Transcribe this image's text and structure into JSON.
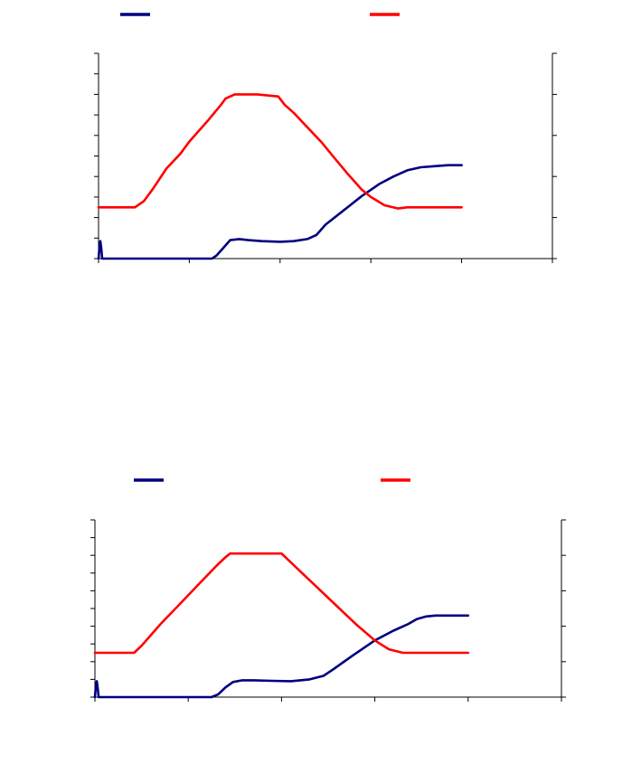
{
  "chart_data": [
    {
      "type": "line",
      "title": "",
      "xlabel": "",
      "ylabel": "",
      "y2label": "",
      "xlim": [
        0,
        5
      ],
      "ylim": [
        0,
        10
      ],
      "y2lim": [
        0,
        5
      ],
      "x_ticks": 5,
      "y_ticks": 10,
      "y2_ticks": 5,
      "grid": false,
      "legend": "top",
      "series": [
        {
          "color": "#000080",
          "axis": "left",
          "x": [
            0,
            0.01,
            0.02,
            0.03,
            0.04,
            1.25,
            1.3,
            1.38,
            1.45,
            1.55,
            1.65,
            1.8,
            2.0,
            2.15,
            2.3,
            2.4,
            2.5,
            2.7,
            2.9,
            3.1,
            3.25,
            3.4,
            3.55,
            3.7,
            3.85,
            4.0
          ],
          "y": [
            0,
            0.55,
            0.85,
            0.5,
            0,
            0,
            0.15,
            0.55,
            0.9,
            0.95,
            0.9,
            0.85,
            0.82,
            0.85,
            0.95,
            1.15,
            1.65,
            2.35,
            3.05,
            3.65,
            4.0,
            4.3,
            4.45,
            4.5,
            4.55,
            4.55
          ]
        },
        {
          "color": "#ff0000",
          "axis": "right",
          "x": [
            0,
            0.4,
            0.5,
            0.6,
            0.75,
            0.9,
            1.0,
            1.2,
            1.35,
            1.4,
            1.5,
            1.75,
            1.98,
            2.05,
            2.15,
            2.3,
            2.45,
            2.6,
            2.75,
            2.9,
            3.0,
            3.15,
            3.3,
            3.4,
            3.6,
            4.0
          ],
          "y": [
            1.25,
            1.25,
            1.4,
            1.7,
            2.2,
            2.55,
            2.85,
            3.35,
            3.75,
            3.9,
            4.0,
            4.0,
            3.95,
            3.75,
            3.55,
            3.2,
            2.85,
            2.45,
            2.05,
            1.68,
            1.5,
            1.3,
            1.22,
            1.25,
            1.25,
            1.25
          ]
        }
      ]
    },
    {
      "type": "line",
      "title": "",
      "xlabel": "",
      "ylabel": "",
      "y2label": "",
      "xlim": [
        0,
        5
      ],
      "ylim": [
        0,
        10
      ],
      "y2lim": [
        0,
        5
      ],
      "x_ticks": 5,
      "y_ticks": 10,
      "y2_ticks": 5,
      "grid": false,
      "legend": "top",
      "series": [
        {
          "color": "#000080",
          "axis": "left",
          "x": [
            0,
            0.01,
            0.02,
            0.03,
            0.04,
            1.25,
            1.32,
            1.4,
            1.48,
            1.58,
            1.7,
            1.9,
            2.1,
            2.3,
            2.45,
            2.55,
            2.75,
            3.0,
            3.2,
            3.35,
            3.45,
            3.55,
            3.65,
            3.8,
            4.0
          ],
          "y": [
            0,
            0.6,
            0.9,
            0.5,
            0,
            0,
            0.15,
            0.55,
            0.85,
            0.95,
            0.95,
            0.92,
            0.9,
            1.0,
            1.2,
            1.55,
            2.3,
            3.2,
            3.75,
            4.1,
            4.4,
            4.55,
            4.6,
            4.6,
            4.6
          ]
        },
        {
          "color": "#ff0000",
          "axis": "right",
          "x": [
            0,
            0.42,
            0.5,
            0.7,
            0.9,
            1.1,
            1.3,
            1.4,
            1.45,
            1.5,
            1.8,
            2.0,
            2.2,
            2.4,
            2.6,
            2.8,
            3.0,
            3.15,
            3.3,
            3.4,
            3.5,
            3.6,
            3.8,
            4.0
          ],
          "y": [
            1.25,
            1.25,
            1.45,
            2.05,
            2.6,
            3.15,
            3.7,
            3.95,
            4.05,
            4.05,
            4.05,
            4.05,
            3.55,
            3.05,
            2.55,
            2.05,
            1.6,
            1.35,
            1.25,
            1.25,
            1.25,
            1.25,
            1.25,
            1.25
          ]
        }
      ]
    }
  ]
}
